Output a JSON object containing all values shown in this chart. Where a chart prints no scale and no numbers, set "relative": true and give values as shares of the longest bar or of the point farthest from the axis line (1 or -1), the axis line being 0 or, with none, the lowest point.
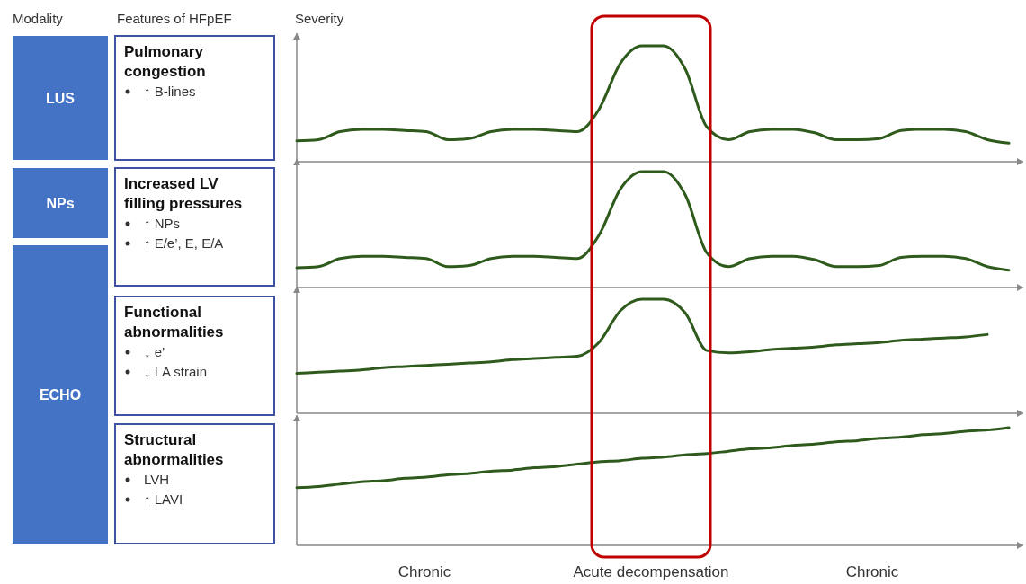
{
  "chart_data": [
    {
      "type": "other",
      "title": "Modality",
      "annotations": [
        "LUS",
        "NPs",
        "ECHO"
      ]
    },
    {
      "type": "line",
      "subtitle": "Features of HFpEF",
      "ylabel": "Severity",
      "title": "Pulmonary congestion",
      "annotations": [
        "↑ B-lines"
      ],
      "relative": true,
      "categories": [
        null,
        null,
        null,
        null,
        null,
        null,
        null,
        null,
        null,
        null,
        null,
        null,
        null,
        null,
        null,
        null,
        null,
        null,
        null,
        null,
        null,
        null,
        null,
        null,
        null,
        null,
        null,
        null,
        null,
        null,
        null,
        null,
        null,
        null
      ],
      "series": [
        {
          "color": "#2e5a1c",
          "values": [
            0.18,
            0.19,
            0.26,
            0.28,
            0.28,
            0.27,
            0.26,
            0.19,
            0.2,
            0.26,
            0.28,
            0.28,
            0.27,
            0.26,
            0.45,
            0.85,
            1,
            1,
            0.8,
            0.3,
            0.19,
            0.26,
            0.28,
            0.28,
            0.25,
            0.19,
            0.19,
            0.2,
            0.27,
            0.28,
            0.28,
            0.26,
            0.19,
            0.16
          ]
        }
      ]
    },
    {
      "type": "line",
      "title": "Increased LV filling pressures",
      "annotations": [
        "↑ NPs",
        "↑ E/e’, E, E/A"
      ],
      "relative": true,
      "categories": [
        null,
        null,
        null,
        null,
        null,
        null,
        null,
        null,
        null,
        null,
        null,
        null,
        null,
        null,
        null,
        null,
        null,
        null,
        null,
        null,
        null,
        null,
        null,
        null,
        null,
        null,
        null,
        null,
        null,
        null,
        null,
        null,
        null,
        null
      ],
      "series": [
        {
          "color": "#2e5a1c",
          "values": [
            0.17,
            0.18,
            0.25,
            0.27,
            0.27,
            0.26,
            0.25,
            0.18,
            0.19,
            0.25,
            0.27,
            0.27,
            0.26,
            0.25,
            0.45,
            0.85,
            1,
            1,
            0.8,
            0.3,
            0.18,
            0.25,
            0.27,
            0.27,
            0.24,
            0.18,
            0.18,
            0.19,
            0.26,
            0.27,
            0.27,
            0.25,
            0.18,
            0.15
          ]
        }
      ]
    },
    {
      "type": "line",
      "title": "Functional abnormalities",
      "annotations": [
        "↓ e’",
        "↓ LA strain"
      ],
      "relative": true,
      "categories": [
        null,
        null,
        null,
        null,
        null,
        null,
        null,
        null,
        null,
        null,
        null,
        null,
        null,
        null,
        null,
        null,
        null,
        null,
        null,
        null,
        null,
        null,
        null,
        null,
        null,
        null,
        null,
        null,
        null,
        null,
        null,
        null,
        null,
        null
      ],
      "series": [
        {
          "color": "#2e5a1c",
          "values": [
            0.35,
            0.36,
            0.37,
            0.38,
            0.4,
            0.41,
            0.42,
            0.43,
            0.44,
            0.45,
            0.47,
            0.48,
            0.49,
            0.5,
            0.62,
            0.9,
            1,
            1,
            0.88,
            0.55,
            0.53,
            0.54,
            0.56,
            0.57,
            0.58,
            0.6,
            0.61,
            0.62,
            0.64,
            0.65,
            0.66,
            0.67,
            0.69,
            null
          ]
        }
      ]
    },
    {
      "type": "line",
      "title": "Structural abnormalities",
      "annotations": [
        "LVH",
        "↑ LAVI"
      ],
      "relative": true,
      "categories": [
        null,
        null,
        null,
        null,
        null,
        null,
        null,
        null,
        null,
        null,
        null,
        null,
        null,
        null,
        null,
        null,
        null,
        null,
        null,
        null,
        null,
        null,
        null,
        null,
        null,
        null,
        null,
        null,
        null,
        null,
        null,
        null,
        null,
        null
      ],
      "series": [
        {
          "color": "#2e5a1c",
          "values": [
            0.49,
            0.5,
            0.52,
            0.54,
            0.55,
            0.57,
            0.58,
            0.6,
            0.61,
            0.63,
            0.64,
            0.66,
            0.67,
            0.69,
            0.71,
            0.72,
            0.74,
            0.75,
            0.77,
            0.78,
            0.8,
            0.82,
            0.83,
            0.85,
            0.86,
            0.88,
            0.89,
            0.91,
            0.92,
            0.94,
            0.95,
            0.97,
            0.98,
            1
          ]
        }
      ]
    },
    {
      "type": "other",
      "annotations": [
        "Chronic",
        "Acute decompensation",
        "Chronic"
      ]
    }
  ]
}
